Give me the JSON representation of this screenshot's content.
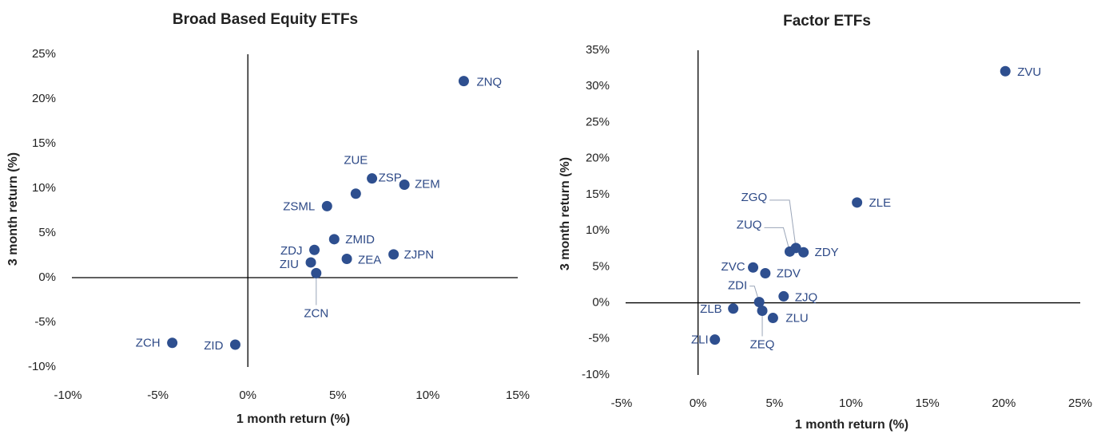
{
  "chart_data": [
    {
      "type": "scatter",
      "title": "Broad Based Equity ETFs",
      "x_label": "1 month return (%)",
      "y_label": "3 month return (%)",
      "color": "#2e4f8f",
      "labels": [
        "ZNQ",
        "ZUE",
        "ZSP",
        "ZEM",
        "ZSML",
        "ZMID",
        "ZDJ",
        "ZJPN",
        "ZEA",
        "ZIU",
        "ZCN",
        "ZCH",
        "ZID"
      ],
      "x": [
        12.0,
        6.0,
        6.9,
        8.7,
        4.4,
        4.8,
        3.7,
        8.1,
        5.5,
        3.5,
        3.8,
        -4.2,
        -0.7
      ],
      "values": [
        22.0,
        9.4,
        11.1,
        10.4,
        8.0,
        4.3,
        3.1,
        2.6,
        2.1,
        1.7,
        0.5,
        -7.3,
        -7.5
      ],
      "xlim": [
        -10,
        15
      ],
      "ylim": [
        -10,
        25
      ],
      "xticks": [
        {
          "value": -10,
          "label": "-10%"
        },
        {
          "value": -5,
          "label": "-5%"
        },
        {
          "value": 0,
          "label": "0%"
        },
        {
          "value": 5,
          "label": "5%"
        },
        {
          "value": 10,
          "label": "10%"
        },
        {
          "value": 15,
          "label": "15%"
        }
      ],
      "yticks": [
        {
          "value": -10,
          "label": "-10%"
        },
        {
          "value": -5,
          "label": "-5%"
        },
        {
          "value": 0,
          "label": "0%"
        },
        {
          "value": 5,
          "label": "5%"
        },
        {
          "value": 10,
          "label": "10%"
        },
        {
          "value": 15,
          "label": "15%"
        },
        {
          "value": 20,
          "label": "20%"
        },
        {
          "value": 25,
          "label": "25%"
        }
      ]
    },
    {
      "type": "scatter",
      "title": "Factor ETFs",
      "x_label": "1 month return (%)",
      "y_label": "3 month return (%)",
      "color": "#2e4f8f",
      "labels": [
        "ZVU",
        "ZLE",
        "ZGQ",
        "ZUQ",
        "ZDY",
        "ZVC",
        "ZDV",
        "ZJQ",
        "ZDI",
        "ZLB",
        "ZEQ",
        "ZLU",
        "ZLI"
      ],
      "x": [
        20.1,
        10.4,
        6.4,
        6.0,
        6.9,
        3.6,
        4.4,
        5.6,
        4.0,
        2.3,
        4.2,
        4.9,
        1.1
      ],
      "values": [
        32.1,
        13.9,
        7.6,
        7.1,
        7.0,
        4.9,
        4.1,
        0.9,
        0.1,
        -0.8,
        -1.1,
        -2.1,
        -5.1
      ],
      "xlim": [
        -5,
        25
      ],
      "ylim": [
        -10,
        35
      ],
      "xticks": [
        {
          "value": -5,
          "label": "-5%"
        },
        {
          "value": 0,
          "label": "0%"
        },
        {
          "value": 5,
          "label": "5%"
        },
        {
          "value": 10,
          "label": "10%"
        },
        {
          "value": 15,
          "label": "15%"
        },
        {
          "value": 20,
          "label": "20%"
        },
        {
          "value": 25,
          "label": "25%"
        }
      ],
      "yticks": [
        {
          "value": -10,
          "label": "-10%"
        },
        {
          "value": -5,
          "label": "-5%"
        },
        {
          "value": 0,
          "label": "0%"
        },
        {
          "value": 5,
          "label": "5%"
        },
        {
          "value": 10,
          "label": "10%"
        },
        {
          "value": 15,
          "label": "15%"
        },
        {
          "value": 20,
          "label": "20%"
        },
        {
          "value": 25,
          "label": "25%"
        },
        {
          "value": 30,
          "label": "30%"
        },
        {
          "value": 35,
          "label": "35%"
        }
      ]
    }
  ]
}
